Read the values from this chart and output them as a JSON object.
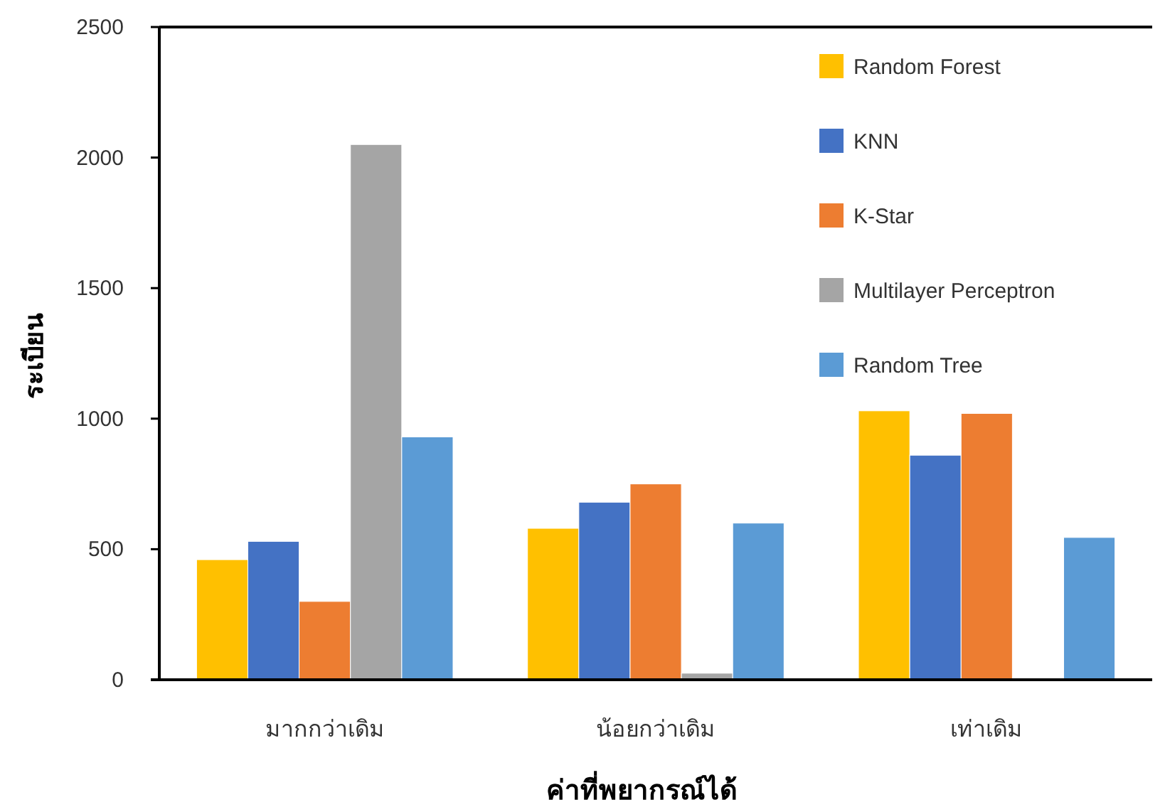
{
  "chart_data": {
    "type": "bar",
    "xlabel": "ค่าที่พยากรณ์ได้",
    "ylabel": "ระเบียน",
    "categories": [
      "มากกว่าเดิม",
      "น้อยกว่าเดิม",
      "เท่าเดิม"
    ],
    "series": [
      {
        "name": "Random Forest",
        "color": "#ffc000",
        "values": [
          460,
          580,
          1030
        ]
      },
      {
        "name": "KNN",
        "color": "#4472c4",
        "values": [
          530,
          680,
          860
        ]
      },
      {
        "name": "K-Star",
        "color": "#ed7d31",
        "values": [
          300,
          750,
          1020
        ]
      },
      {
        "name": "Multilayer Perceptron",
        "color": "#a5a5a5",
        "values": [
          2050,
          25,
          0
        ]
      },
      {
        "name": "Random Tree",
        "color": "#5b9bd5",
        "values": [
          930,
          600,
          545
        ]
      }
    ],
    "ylim": [
      0,
      2500
    ],
    "yticks": [
      0,
      500,
      1000,
      1500,
      2000,
      2500
    ],
    "grid": false,
    "legend": "top right"
  }
}
